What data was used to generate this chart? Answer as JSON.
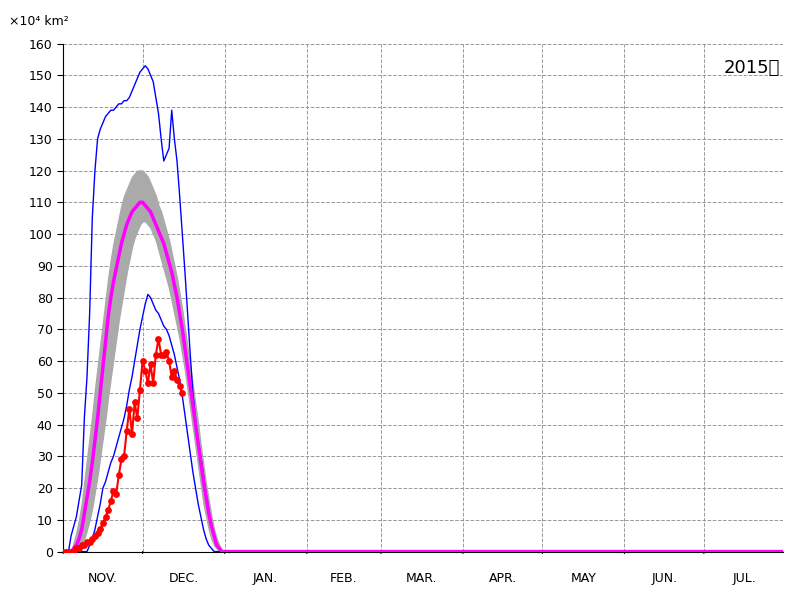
{
  "title": "2015年",
  "ylabel": "×10⁴ km²",
  "ylim": [
    0,
    160
  ],
  "yticks": [
    0,
    10,
    20,
    30,
    40,
    50,
    60,
    70,
    80,
    90,
    100,
    110,
    120,
    130,
    140,
    150,
    160
  ],
  "x_labels": [
    "NOV.",
    "DEC.",
    "JAN.",
    "FEB.",
    "MAR.",
    "APR.",
    "MAY",
    "JUN.",
    "JUL."
  ],
  "month_lengths": [
    30,
    31,
    31,
    28,
    31,
    30,
    31,
    30,
    31
  ],
  "background_color": "#ffffff",
  "mean_line": [
    0,
    0,
    0,
    0,
    1,
    2,
    4,
    7,
    12,
    17,
    22,
    28,
    35,
    42,
    50,
    58,
    66,
    74,
    80,
    85,
    89,
    93,
    97,
    100,
    103,
    105,
    107,
    108,
    109,
    110,
    110,
    109,
    108,
    107,
    105,
    103,
    101,
    99,
    97,
    94,
    91,
    88,
    84,
    80,
    75,
    70,
    64,
    58,
    52,
    46,
    40,
    34,
    28,
    22,
    17,
    12,
    8,
    5,
    2,
    1,
    0,
    0,
    0,
    0,
    0,
    0,
    0,
    0,
    0,
    0,
    0,
    0,
    0,
    0,
    0,
    0,
    0,
    0,
    0,
    0,
    0,
    0,
    0,
    0,
    0,
    0,
    0,
    0,
    0,
    0,
    0,
    0,
    0,
    0,
    0,
    0,
    0,
    0,
    0,
    0,
    0,
    0,
    0,
    0,
    0,
    0,
    0,
    0,
    0,
    0,
    0,
    0,
    0,
    0,
    0,
    0,
    0,
    0,
    0,
    0,
    0,
    0,
    0,
    0,
    0,
    0,
    0,
    0,
    0,
    0,
    0,
    0,
    0,
    0,
    0,
    0,
    0,
    0,
    0,
    0,
    0,
    0,
    0,
    0,
    0,
    0,
    0,
    0,
    0,
    0,
    0,
    0,
    0,
    0,
    0,
    0,
    0,
    0,
    0,
    0,
    0,
    0,
    0,
    0,
    0,
    0,
    0,
    0,
    0,
    0,
    0,
    0,
    0,
    0,
    0,
    0,
    0,
    0,
    0,
    0,
    0,
    0,
    0,
    0,
    0,
    0,
    0,
    0,
    0,
    0,
    0,
    0,
    0,
    0,
    0,
    0,
    0,
    0,
    0,
    0,
    0,
    0,
    0,
    0,
    0,
    0,
    0,
    0,
    0,
    0,
    0,
    0,
    0,
    0,
    0,
    0,
    0,
    0,
    0,
    0,
    0,
    0,
    0,
    0,
    0,
    0,
    0,
    0,
    0,
    0,
    0,
    0,
    0
  ],
  "mean_upper": [
    0,
    0,
    0,
    0,
    3,
    6,
    10,
    15,
    22,
    29,
    36,
    43,
    51,
    58,
    65,
    72,
    79,
    86,
    92,
    97,
    101,
    105,
    109,
    112,
    114,
    116,
    118,
    119,
    120,
    120,
    120,
    119,
    118,
    116,
    114,
    112,
    109,
    107,
    104,
    101,
    98,
    94,
    90,
    86,
    81,
    76,
    70,
    64,
    58,
    52,
    46,
    40,
    33,
    27,
    21,
    16,
    11,
    7,
    4,
    2,
    0,
    0,
    0,
    0,
    0,
    0,
    0,
    0,
    0,
    0,
    0,
    0,
    0,
    0,
    0,
    0,
    0,
    0,
    0,
    0,
    0,
    0,
    0,
    0,
    0,
    0,
    0,
    0,
    0,
    0,
    0,
    0,
    0,
    0,
    0,
    0,
    0,
    0,
    0,
    0,
    0,
    0,
    0,
    0,
    0,
    0,
    0,
    0,
    0,
    0,
    0,
    0,
    0,
    0,
    0,
    0,
    0,
    0,
    0,
    0,
    0,
    0,
    0,
    0,
    0,
    0,
    0,
    0,
    0,
    0,
    0,
    0,
    0,
    0,
    0,
    0,
    0,
    0,
    0,
    0,
    0,
    0,
    0,
    0,
    0,
    0,
    0,
    0,
    0,
    0,
    0,
    0,
    0,
    0,
    0,
    0,
    0,
    0,
    0,
    0,
    0,
    0,
    0,
    0,
    0,
    0,
    0,
    0,
    0,
    0,
    0,
    0,
    0,
    0,
    0,
    0,
    0,
    0,
    0,
    0,
    0,
    0,
    0,
    0,
    0,
    0,
    0,
    0,
    0,
    0,
    0,
    0,
    0,
    0,
    0,
    0,
    0,
    0,
    0,
    0,
    0,
    0,
    0,
    0,
    0,
    0,
    0,
    0,
    0,
    0,
    0,
    0,
    0,
    0,
    0,
    0,
    0,
    0,
    0,
    0,
    0,
    0,
    0,
    0,
    0,
    0,
    0,
    0,
    0,
    0,
    0,
    0,
    0
  ],
  "mean_lower": [
    0,
    0,
    0,
    0,
    0,
    0,
    1,
    2,
    4,
    7,
    10,
    14,
    19,
    24,
    30,
    36,
    42,
    49,
    55,
    61,
    67,
    73,
    78,
    83,
    88,
    92,
    96,
    99,
    101,
    103,
    104,
    104,
    103,
    102,
    100,
    98,
    95,
    92,
    89,
    86,
    83,
    79,
    75,
    71,
    67,
    62,
    57,
    51,
    45,
    39,
    33,
    27,
    21,
    15,
    11,
    7,
    4,
    2,
    1,
    0,
    0,
    0,
    0,
    0,
    0,
    0,
    0,
    0,
    0,
    0,
    0,
    0,
    0,
    0,
    0,
    0,
    0,
    0,
    0,
    0,
    0,
    0,
    0,
    0,
    0,
    0,
    0,
    0,
    0,
    0,
    0,
    0,
    0,
    0,
    0,
    0,
    0,
    0,
    0,
    0,
    0,
    0,
    0,
    0,
    0,
    0,
    0,
    0,
    0,
    0,
    0,
    0,
    0,
    0,
    0,
    0,
    0,
    0,
    0,
    0,
    0,
    0,
    0,
    0,
    0,
    0,
    0,
    0,
    0,
    0,
    0,
    0,
    0,
    0,
    0,
    0,
    0,
    0,
    0,
    0,
    0,
    0,
    0,
    0,
    0,
    0,
    0,
    0,
    0,
    0,
    0,
    0,
    0,
    0,
    0,
    0,
    0,
    0,
    0,
    0,
    0,
    0,
    0,
    0,
    0,
    0,
    0,
    0,
    0,
    0,
    0,
    0,
    0,
    0,
    0,
    0,
    0,
    0,
    0,
    0,
    0,
    0,
    0,
    0,
    0,
    0,
    0,
    0,
    0,
    0,
    0,
    0,
    0,
    0,
    0,
    0,
    0,
    0,
    0,
    0,
    0,
    0,
    0,
    0,
    0,
    0,
    0,
    0,
    0,
    0,
    0,
    0,
    0,
    0,
    0,
    0,
    0,
    0,
    0,
    0,
    0,
    0,
    0,
    0,
    0,
    0,
    0,
    0,
    0,
    0,
    0,
    0,
    0
  ],
  "upper_blue": [
    0,
    0,
    0,
    5,
    8,
    11,
    16,
    21,
    42,
    55,
    75,
    105,
    120,
    130,
    133,
    135,
    137,
    138,
    139,
    139,
    140,
    141,
    141,
    142,
    142,
    143,
    145,
    147,
    149,
    151,
    152,
    153,
    152,
    150,
    148,
    143,
    138,
    130,
    123,
    125,
    127,
    139,
    130,
    123,
    112,
    100,
    88,
    75,
    62,
    50,
    42,
    35,
    30,
    24,
    18,
    13,
    8,
    5,
    2,
    1,
    0,
    0,
    0,
    0,
    0,
    0,
    0,
    0,
    0,
    0,
    0,
    0,
    0,
    0,
    0,
    0,
    0,
    0,
    0,
    0,
    0,
    0,
    0,
    0,
    0,
    0,
    0,
    0,
    0,
    0,
    0,
    0,
    0,
    0,
    0,
    0,
    0,
    0,
    0,
    0,
    0,
    0,
    0,
    0,
    0,
    0,
    0,
    0,
    0,
    0,
    0,
    0,
    0,
    0,
    0,
    0,
    0,
    0,
    0,
    0,
    0,
    0,
    0,
    0,
    0,
    0,
    0,
    0,
    0,
    0,
    0,
    0,
    0,
    0,
    0,
    0,
    0,
    0,
    0,
    0,
    0,
    0,
    0,
    0,
    0,
    0,
    0,
    0,
    0,
    0,
    0,
    0,
    0,
    0,
    0,
    0,
    0,
    0,
    0,
    0,
    0,
    0,
    0,
    0,
    0,
    0,
    0,
    0,
    0,
    0,
    0,
    0,
    0,
    0,
    0,
    0,
    0,
    0,
    0,
    0,
    0,
    0,
    0,
    0,
    0,
    0,
    0,
    0,
    0,
    0,
    0,
    0,
    0,
    0,
    0,
    0,
    0,
    0,
    0,
    0,
    0,
    0,
    0,
    0,
    0,
    0,
    0,
    0,
    0,
    0,
    0,
    0,
    0,
    0,
    0,
    0,
    0,
    0,
    0,
    0,
    0,
    0,
    0,
    0,
    0,
    0,
    0,
    0,
    0,
    0,
    0,
    0,
    0
  ],
  "lower_blue": [
    0,
    0,
    0,
    0,
    0,
    0,
    0,
    0,
    0,
    0,
    2,
    4,
    7,
    11,
    15,
    20,
    22,
    25,
    28,
    30,
    33,
    36,
    39,
    42,
    46,
    51,
    55,
    60,
    65,
    70,
    74,
    78,
    81,
    80,
    78,
    76,
    75,
    73,
    71,
    70,
    68,
    65,
    62,
    58,
    54,
    49,
    43,
    37,
    31,
    25,
    20,
    15,
    11,
    7,
    4,
    2,
    1,
    0,
    0,
    0,
    0,
    0,
    0,
    0,
    0,
    0,
    0,
    0,
    0,
    0,
    0,
    0,
    0,
    0,
    0,
    0,
    0,
    0,
    0,
    0,
    0,
    0,
    0,
    0,
    0,
    0,
    0,
    0,
    0,
    0,
    0,
    0,
    0,
    0,
    0,
    0,
    0,
    0,
    0,
    0,
    0,
    0,
    0,
    0,
    0,
    0,
    0,
    0,
    0,
    0,
    0,
    0,
    0,
    0,
    0,
    0,
    0,
    0,
    0,
    0,
    0,
    0,
    0,
    0,
    0,
    0,
    0,
    0,
    0,
    0,
    0,
    0,
    0,
    0,
    0,
    0,
    0,
    0,
    0,
    0,
    0,
    0,
    0,
    0,
    0,
    0,
    0,
    0,
    0,
    0,
    0,
    0,
    0,
    0,
    0,
    0,
    0,
    0,
    0,
    0,
    0,
    0,
    0,
    0,
    0,
    0,
    0,
    0,
    0,
    0,
    0,
    0,
    0,
    0,
    0,
    0,
    0,
    0,
    0,
    0,
    0,
    0,
    0,
    0,
    0,
    0,
    0,
    0,
    0,
    0,
    0,
    0,
    0,
    0,
    0,
    0,
    0,
    0,
    0,
    0,
    0,
    0,
    0,
    0,
    0,
    0,
    0,
    0,
    0,
    0,
    0,
    0,
    0,
    0,
    0,
    0,
    0,
    0,
    0,
    0,
    0,
    0,
    0,
    0,
    0,
    0,
    0,
    0,
    0,
    0,
    0,
    0,
    0
  ],
  "red_y": [
    0,
    0,
    0,
    0,
    0,
    1,
    1,
    2,
    2,
    3,
    3,
    4,
    5,
    6,
    7,
    9,
    11,
    13,
    16,
    19,
    18,
    24,
    29,
    30,
    38,
    45,
    37,
    47,
    42,
    51,
    60,
    57,
    53,
    59,
    53,
    62,
    67,
    62,
    62,
    63,
    60,
    55,
    57,
    54,
    52,
    50,
    null,
    null,
    null,
    null,
    null,
    null,
    null,
    null,
    null,
    null,
    null,
    null,
    null,
    null,
    null
  ]
}
